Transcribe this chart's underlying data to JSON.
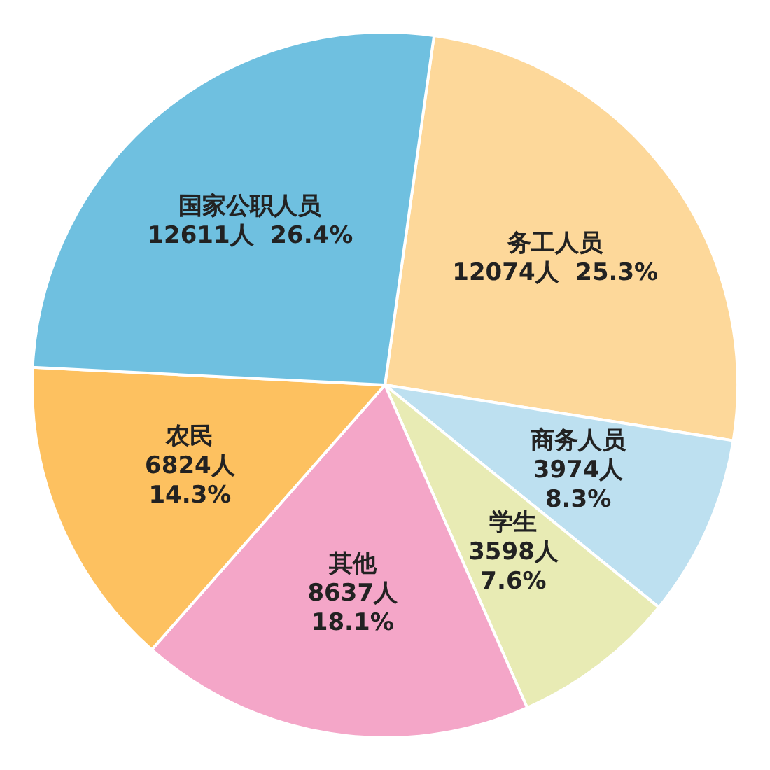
{
  "chart_data": {
    "type": "pie",
    "categories": [
      "务工人员",
      "商务人员",
      "学生",
      "其他",
      "农民",
      "国家公职人员"
    ],
    "values": [
      12074,
      3974,
      3598,
      8637,
      6824,
      12611
    ],
    "value_labels": [
      "12074人  25.3%",
      "3974人\n8.3%",
      "3598人\n7.6%",
      "8637人\n18.1%",
      "6824人\n14.3%",
      "12611人  26.4%"
    ],
    "colors": [
      "#fdd89a",
      "#bde0f0",
      "#e8ebb4",
      "#f4a6c8",
      "#fdc160",
      "#6fc0e0"
    ],
    "legend": false
  }
}
